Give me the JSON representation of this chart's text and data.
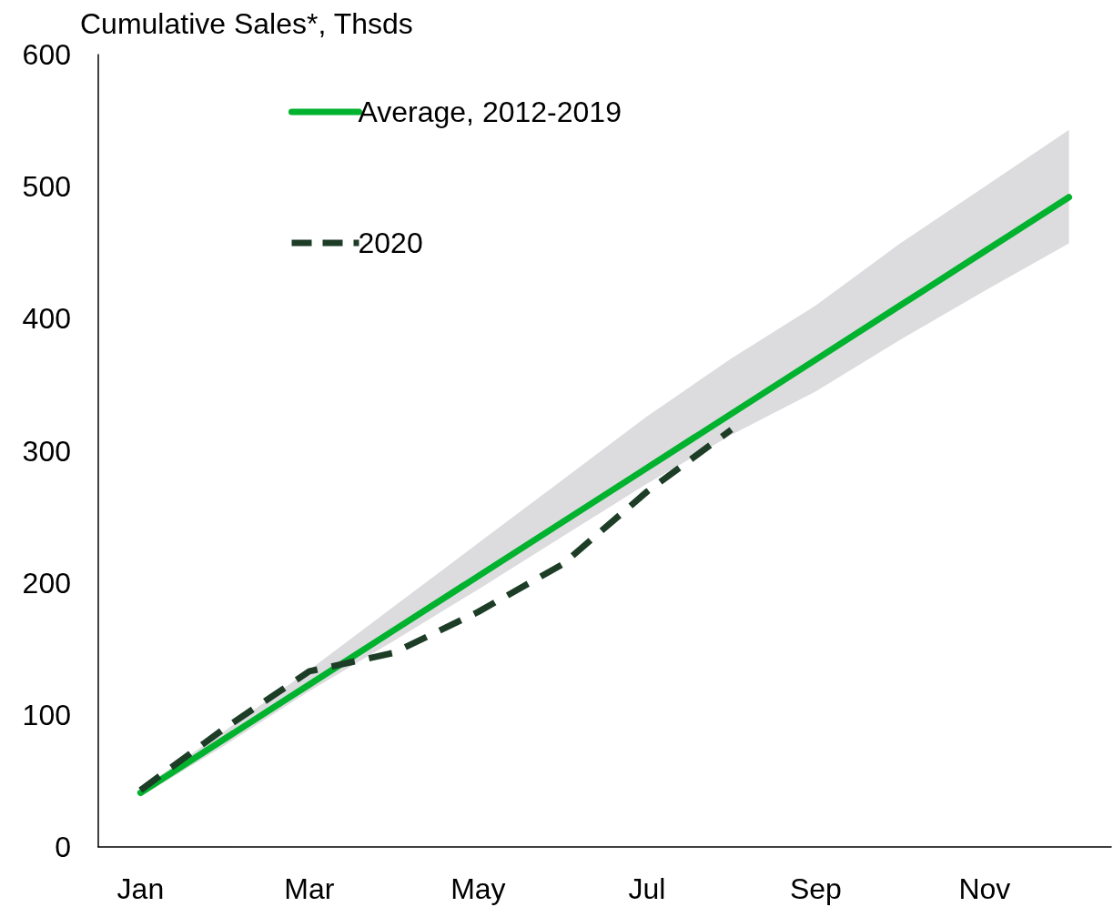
{
  "chart_data": {
    "type": "line",
    "ylabel": "Cumulative Sales*, Thsds",
    "categories": [
      "Jan",
      null,
      "Mar",
      null,
      "May",
      null,
      "Jul",
      null,
      "Sep",
      null,
      "Nov",
      null
    ],
    "ylim": [
      0,
      600
    ],
    "yticks": [
      0,
      100,
      200,
      300,
      400,
      500,
      600
    ],
    "grid": false,
    "legend": "top left",
    "marker": "none",
    "series": [
      {
        "name": "Average, 2012-2019",
        "color": "#00b22d",
        "line_style": "solid",
        "values": [
          41,
          82,
          123,
          164,
          205,
          246,
          287,
          328,
          369,
          410,
          451,
          492
        ],
        "lower": [
          38,
          77,
          118,
          156,
          195,
          235,
          275,
          312,
          345,
          384,
          421,
          457
        ],
        "upper": [
          44,
          88,
          134,
          182,
          230,
          278,
          326,
          370,
          410,
          457,
          500,
          543
        ]
      },
      {
        "name": "2020",
        "color": "#1d3d27",
        "line_style": "dashed",
        "values": [
          43,
          90,
          133,
          147,
          178,
          214,
          269,
          316,
          null,
          null,
          null,
          null
        ]
      }
    ]
  }
}
